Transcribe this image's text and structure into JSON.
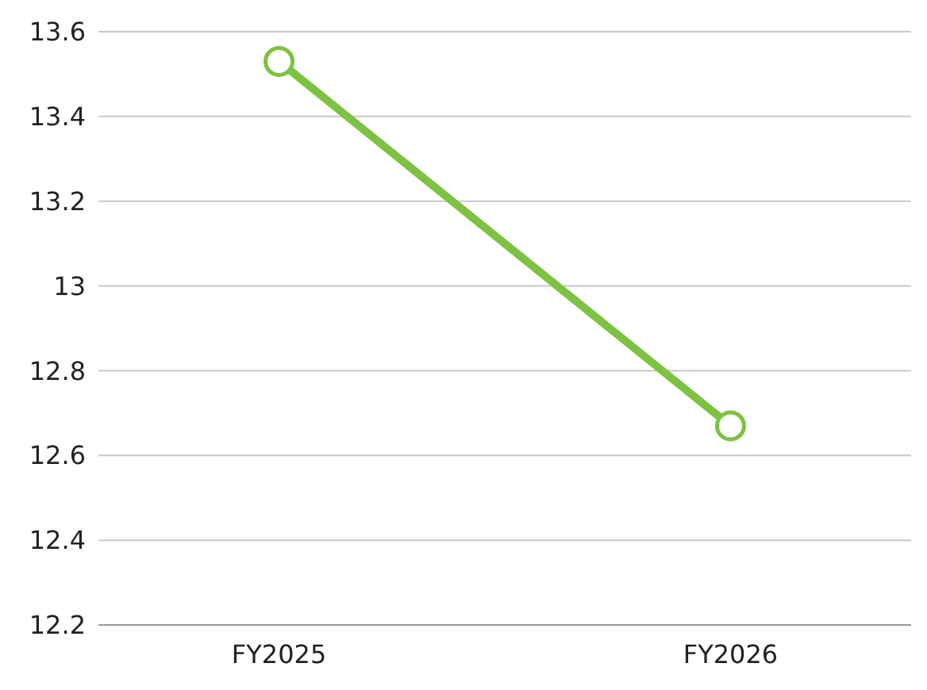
{
  "chart_data": {
    "type": "line",
    "categories": [
      "FY2025",
      "FY2026"
    ],
    "series": [
      {
        "color": "#7dc242",
        "values": [
          13.53,
          12.67
        ]
      }
    ],
    "ylim": [
      12.2,
      13.6
    ],
    "yticks": [
      12.2,
      12.4,
      12.6,
      12.8,
      13,
      13.2,
      13.4,
      13.6
    ],
    "grid": "y",
    "marker": "circle",
    "line_style": "solid"
  }
}
